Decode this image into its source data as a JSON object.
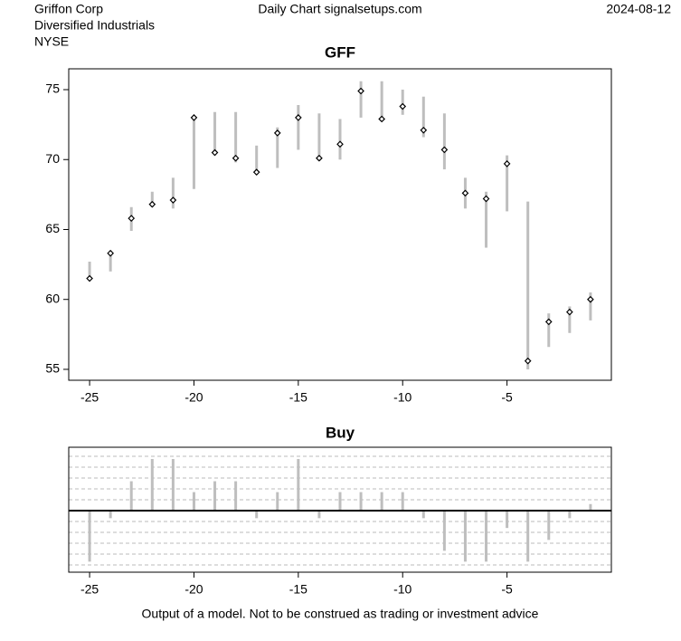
{
  "header": {
    "company": "Griffon Corp",
    "sector": "Diversified Industrials",
    "exchange": "NYSE",
    "source": "Daily Chart signalsetups.com",
    "date": "2024-08-12"
  },
  "footer": "Output of a model. Not to be construed as trading or investment advice",
  "chart_data": [
    {
      "type": "range",
      "title": "GFF",
      "color": "#bebebe",
      "x": [
        -25,
        -24,
        -23,
        -22,
        -21,
        -20,
        -19,
        -18,
        -17,
        -16,
        -15,
        -14,
        -13,
        -12,
        -11,
        -10,
        -9,
        -8,
        -7,
        -6,
        -5,
        -4,
        -3,
        -2,
        -1
      ],
      "high": [
        62.7,
        63.5,
        66.6,
        67.7,
        68.7,
        73.1,
        73.4,
        73.4,
        71.0,
        72.3,
        73.9,
        73.3,
        72.9,
        75.6,
        75.6,
        75.0,
        74.5,
        73.3,
        68.7,
        67.7,
        70.3,
        67.0,
        59.0,
        59.5,
        60.5
      ],
      "low": [
        61.4,
        62.0,
        64.9,
        66.6,
        66.5,
        67.9,
        70.3,
        69.8,
        68.9,
        69.4,
        70.7,
        69.9,
        70.0,
        73.0,
        72.8,
        73.2,
        71.6,
        69.3,
        66.5,
        63.7,
        66.3,
        55.0,
        56.6,
        57.6,
        58.5
      ],
      "close": [
        61.5,
        63.3,
        65.8,
        66.8,
        67.1,
        73.0,
        70.5,
        70.1,
        69.1,
        71.9,
        73.0,
        70.1,
        71.1,
        74.9,
        72.9,
        73.8,
        72.1,
        70.7,
        67.6,
        67.2,
        69.7,
        55.6,
        58.4,
        59.1,
        60.0
      ],
      "xlim": [
        -26,
        0
      ],
      "xticks": [
        -25,
        -20,
        -15,
        -10,
        -5
      ],
      "ylim": [
        54.22,
        76.49
      ],
      "yticks": [
        55,
        60,
        65,
        70,
        75
      ]
    },
    {
      "type": "bar",
      "title": "Buy",
      "color": "#bebebe",
      "x": [
        -25,
        -24,
        -23,
        -22,
        -21,
        -20,
        -19,
        -18,
        -17,
        -16,
        -15,
        -14,
        -13,
        -12,
        -11,
        -10,
        -9,
        -8,
        -7,
        -6,
        -5,
        -4,
        -3,
        -2,
        -1
      ],
      "values": [
        -4.7,
        -0.7,
        2.7,
        4.75,
        4.75,
        1.7,
        2.7,
        2.7,
        -0.7,
        1.7,
        4.75,
        -0.7,
        1.7,
        1.7,
        1.7,
        1.7,
        -0.7,
        -3.7,
        -4.7,
        -4.7,
        -1.6,
        -4.7,
        -2.7,
        -0.7,
        0.6
      ],
      "xlim": [
        -26,
        0
      ],
      "xticks": [
        -25,
        -20,
        -15,
        -10,
        -5
      ],
      "ylim": [
        -5.67,
        5.83
      ],
      "ygrid": [
        -5,
        -4,
        -3,
        -2,
        -1,
        1,
        2,
        3,
        4,
        5
      ]
    }
  ]
}
